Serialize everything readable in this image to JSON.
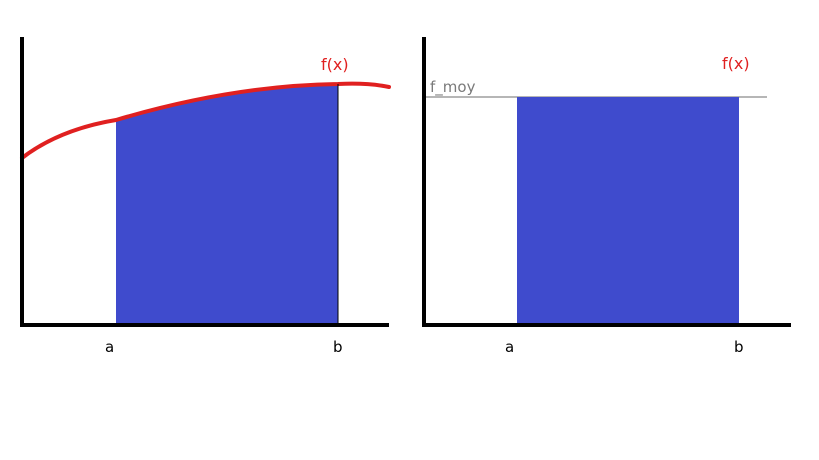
{
  "colors": {
    "fill": "#3f4bcd",
    "curve": "#e02020",
    "axis": "#000000",
    "mean_line": "#8a8a8a",
    "mean_label": "#7a7a7a"
  },
  "left_panel": {
    "function_label": "f(x)",
    "a_label": "a",
    "b_label": "b"
  },
  "right_panel": {
    "function_label": "f(x)",
    "mean_label": "f_moy",
    "a_label": "a",
    "b_label": "b"
  }
}
